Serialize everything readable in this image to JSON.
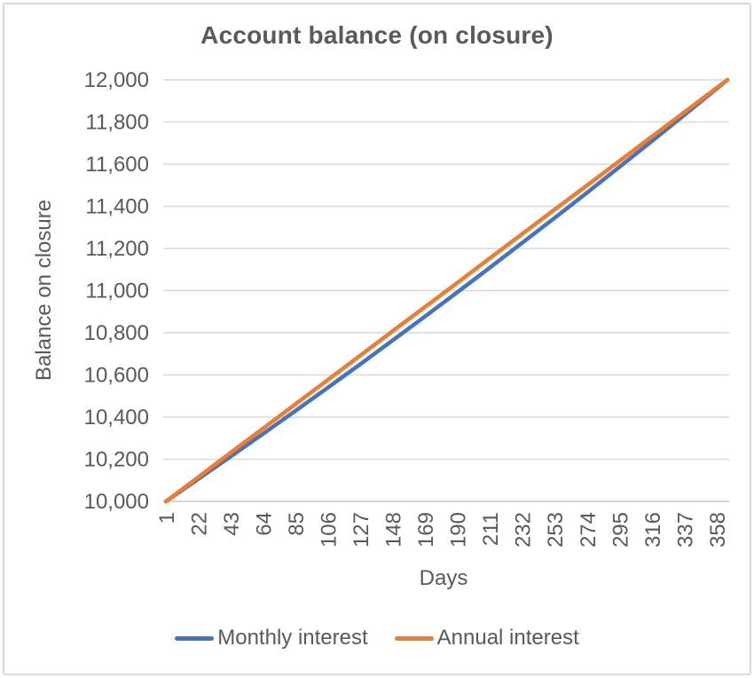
{
  "frame": {
    "border_color": "#d9d9d9",
    "background": "#ffffff"
  },
  "chart_data": {
    "type": "line",
    "title": "Account balance (on closure)",
    "xlabel": "Days",
    "ylabel": "Balance on closure",
    "grid": true,
    "legend_position": "bottom",
    "title_color": "#595959",
    "text_color": "#595959",
    "gridline_color": "#d9d9d9",
    "axis_line_color": "#c9c9c9",
    "x_range": [
      1,
      365
    ],
    "ylim": [
      10000,
      12000
    ],
    "y_step": 200,
    "y_tick_labels": [
      "10,000",
      "10,200",
      "10,400",
      "10,600",
      "10,800",
      "11,000",
      "11,200",
      "11,400",
      "11,600",
      "11,800",
      "12,000"
    ],
    "x_ticks": [
      1,
      22,
      43,
      64,
      85,
      106,
      127,
      148,
      169,
      190,
      211,
      232,
      253,
      274,
      295,
      316,
      337,
      358
    ],
    "x": [
      1,
      22,
      43,
      64,
      85,
      106,
      127,
      148,
      169,
      190,
      211,
      232,
      253,
      274,
      295,
      316,
      337,
      358,
      365
    ],
    "series": [
      {
        "name": "Monthly interest",
        "color": "#4472C4",
        "values": [
          10000,
          10106,
          10213,
          10321,
          10430,
          10540,
          10651,
          10764,
          10878,
          10993,
          11109,
          11227,
          11345,
          11465,
          11587,
          11709,
          11833,
          11958,
          12000
        ]
      },
      {
        "name": "Annual interest",
        "color": "#ED7D31",
        "values": [
          10000,
          10115,
          10231,
          10346,
          10462,
          10577,
          10692,
          10808,
          10923,
          11038,
          11154,
          11269,
          11385,
          11500,
          11615,
          11731,
          11846,
          11962,
          12000
        ]
      }
    ]
  }
}
